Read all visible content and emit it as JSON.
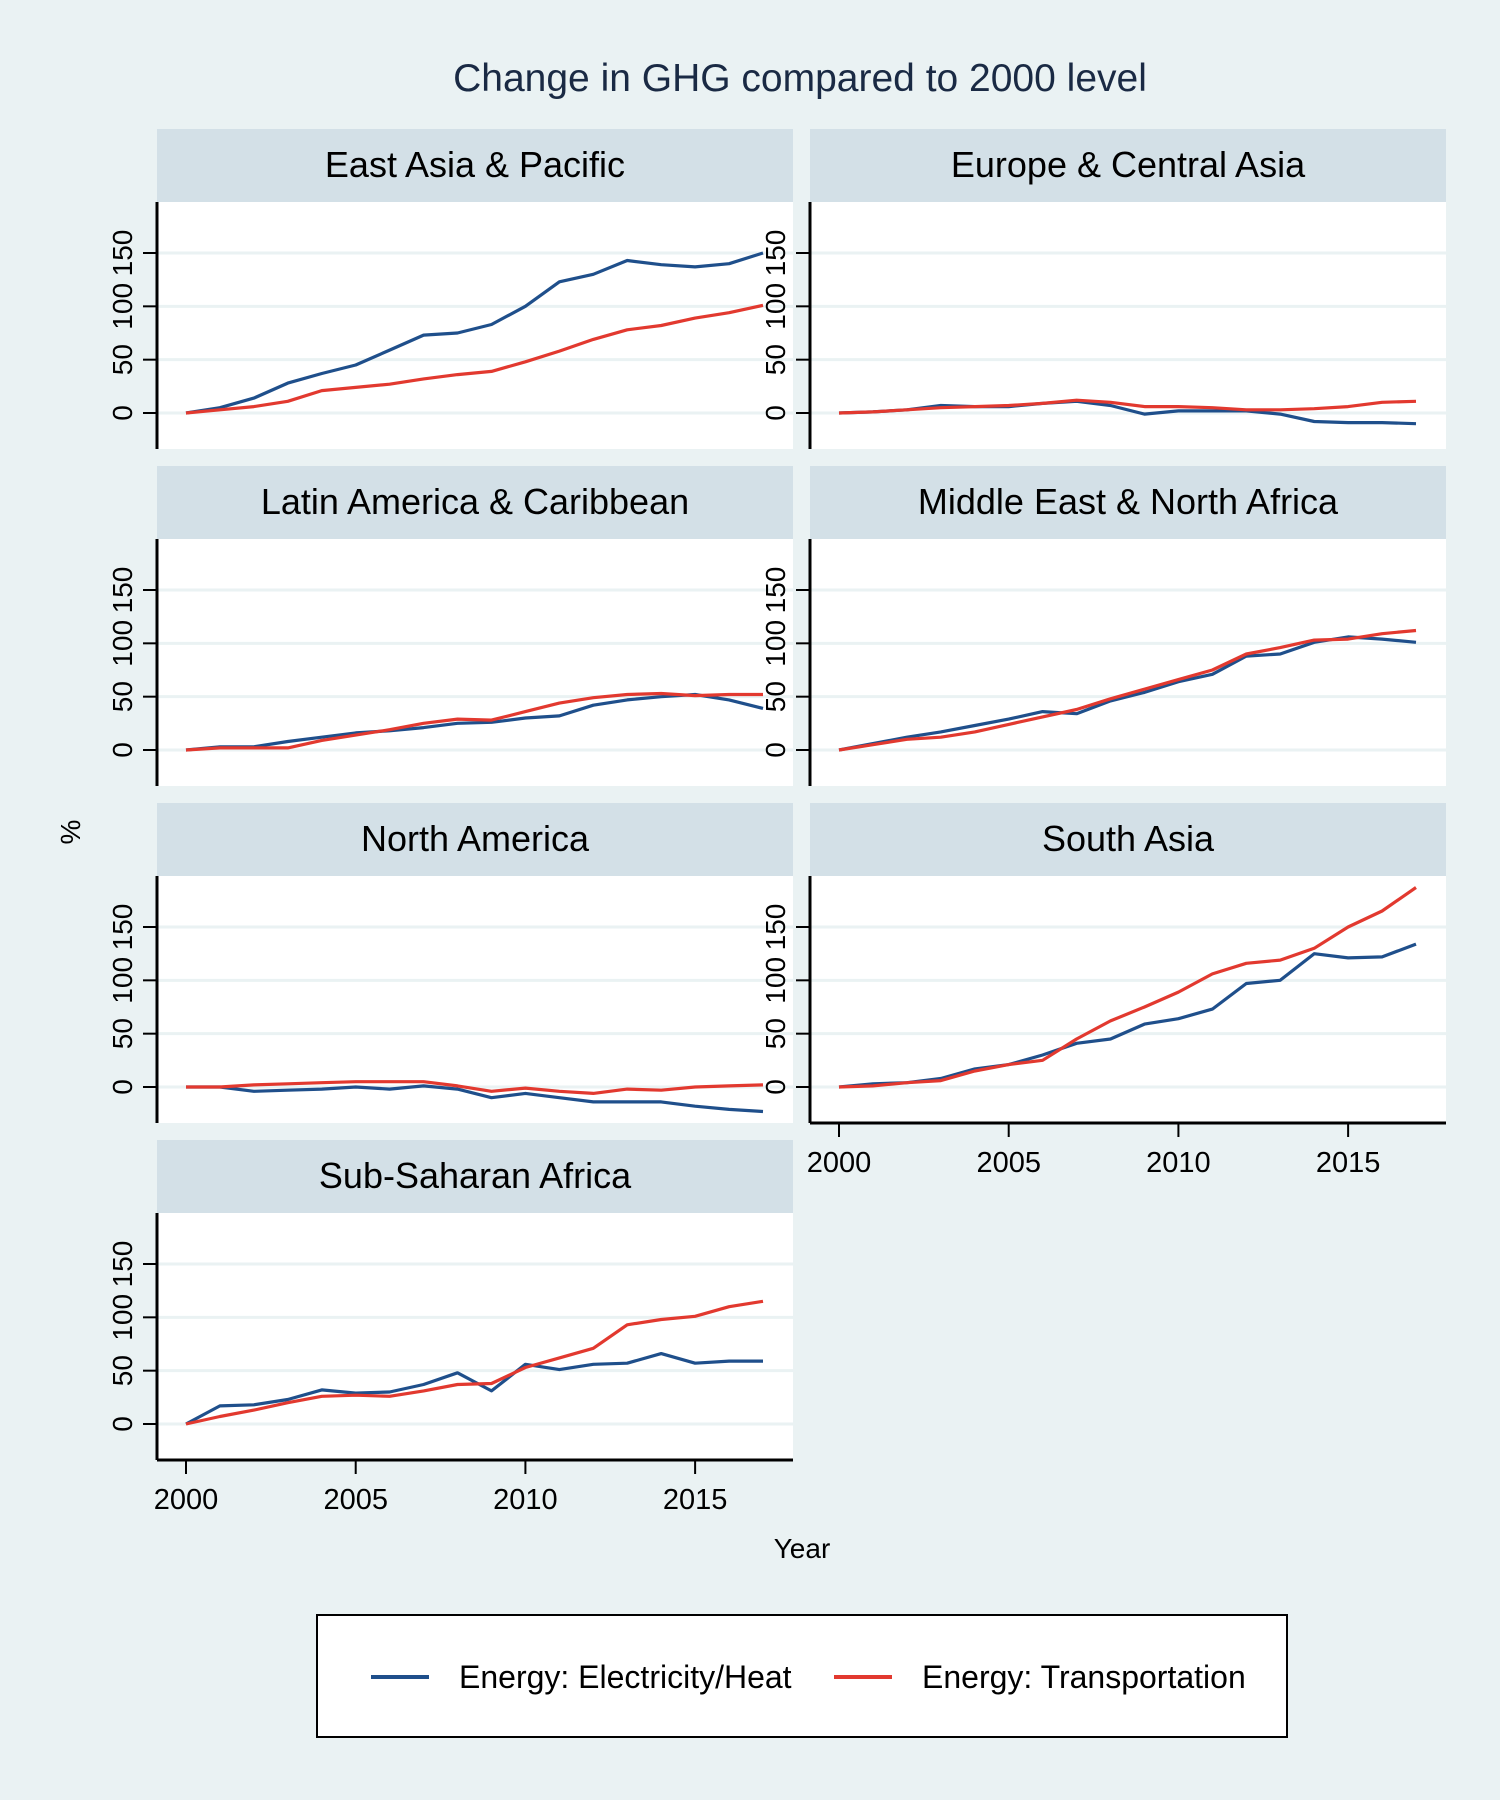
{
  "figure_title": "Change in GHG compared to 2000 level",
  "colors": {
    "background": "#eaf2f3",
    "plot_background": "#ffffff",
    "strip_background": "#d3e0e7",
    "grid": "#eaf2f3",
    "title": "#1a2a44",
    "electricity": "#1f4f8b",
    "transportation": "#e2392f"
  },
  "legend": {
    "items": [
      {
        "label": "Energy: Electricity/Heat",
        "color": "#1f4f8b"
      },
      {
        "label": "Energy: Transportation",
        "color": "#e2392f"
      }
    ]
  },
  "chart_data": {
    "type": "line",
    "title": "Change in GHG compared to 2000 level",
    "xlabel": "Year",
    "ylabel": "%",
    "x": [
      2000,
      2001,
      2002,
      2003,
      2004,
      2005,
      2006,
      2007,
      2008,
      2009,
      2010,
      2011,
      2012,
      2013,
      2014,
      2015,
      2016,
      2017
    ],
    "xlim": [
      2000,
      2017
    ],
    "xticks": [
      2000,
      2005,
      2010,
      2015
    ],
    "ylim": [
      -35,
      200
    ],
    "yticks": [
      0,
      50,
      100,
      150
    ],
    "grid": true,
    "legend_position": "bottom",
    "panels": [
      {
        "name": "East Asia & Pacific",
        "series": [
          {
            "name": "Energy: Electricity/Heat",
            "values": [
              0,
              5,
              14,
              28,
              37,
              45,
              59,
              73,
              75,
              83,
              100,
              123,
              130,
              143,
              139,
              137,
              140,
              150
            ]
          },
          {
            "name": "Energy: Transportation",
            "values": [
              0,
              3,
              6,
              11,
              21,
              24,
              27,
              32,
              36,
              39,
              48,
              58,
              69,
              78,
              82,
              89,
              94,
              101
            ]
          }
        ]
      },
      {
        "name": "Europe & Central Asia",
        "series": [
          {
            "name": "Energy: Electricity/Heat",
            "values": [
              0,
              1,
              3,
              7,
              6,
              6,
              9,
              11,
              7,
              -1,
              2,
              2,
              2,
              -1,
              -8,
              -9,
              -9,
              -10
            ]
          },
          {
            "name": "Energy: Transportation",
            "values": [
              0,
              1,
              3,
              5,
              6,
              7,
              9,
              12,
              10,
              6,
              6,
              5,
              3,
              3,
              4,
              6,
              10,
              11
            ]
          }
        ]
      },
      {
        "name": "Latin America & Caribbean",
        "series": [
          {
            "name": "Energy: Electricity/Heat",
            "values": [
              0,
              3,
              3,
              8,
              12,
              16,
              18,
              21,
              25,
              26,
              30,
              32,
              42,
              47,
              50,
              52,
              47,
              39
            ]
          },
          {
            "name": "Energy: Transportation",
            "values": [
              0,
              2,
              2,
              2,
              9,
              14,
              19,
              25,
              29,
              28,
              36,
              44,
              49,
              52,
              53,
              51,
              52,
              52
            ]
          }
        ]
      },
      {
        "name": "Middle East & North Africa",
        "series": [
          {
            "name": "Energy: Electricity/Heat",
            "values": [
              0,
              6,
              12,
              17,
              23,
              29,
              36,
              34,
              46,
              54,
              64,
              71,
              88,
              90,
              101,
              106,
              104,
              101
            ]
          },
          {
            "name": "Energy: Transportation",
            "values": [
              0,
              5,
              10,
              12,
              17,
              24,
              31,
              38,
              48,
              57,
              66,
              75,
              90,
              96,
              103,
              104,
              109,
              112
            ]
          }
        ]
      },
      {
        "name": "North America",
        "series": [
          {
            "name": "Energy: Electricity/Heat",
            "values": [
              0,
              0,
              -4,
              -3,
              -2,
              0,
              -2,
              1,
              -2,
              -10,
              -6,
              -10,
              -14,
              -14,
              -14,
              -18,
              -21,
              -23
            ]
          },
          {
            "name": "Energy: Transportation",
            "values": [
              0,
              0,
              2,
              3,
              4,
              5,
              5,
              5,
              1,
              -4,
              -1,
              -4,
              -6,
              -2,
              -3,
              0,
              1,
              2
            ]
          }
        ]
      },
      {
        "name": "South Asia",
        "series": [
          {
            "name": "Energy: Electricity/Heat",
            "values": [
              0,
              3,
              4,
              8,
              17,
              21,
              30,
              41,
              45,
              59,
              64,
              73,
              97,
              100,
              125,
              121,
              122,
              134
            ]
          },
          {
            "name": "Energy: Transportation",
            "values": [
              0,
              1,
              4,
              6,
              15,
              21,
              25,
              45,
              62,
              75,
              89,
              106,
              116,
              119,
              130,
              150,
              165,
              187
            ]
          }
        ]
      },
      {
        "name": "Sub-Saharan Africa",
        "series": [
          {
            "name": "Energy: Electricity/Heat",
            "values": [
              0,
              17,
              18,
              23,
              32,
              29,
              30,
              37,
              48,
              31,
              56,
              51,
              56,
              57,
              66,
              57,
              59,
              59
            ]
          },
          {
            "name": "Energy: Transportation",
            "values": [
              0,
              7,
              13,
              20,
              26,
              27,
              26,
              31,
              37,
              38,
              53,
              62,
              71,
              93,
              98,
              101,
              110,
              115
            ]
          }
        ]
      }
    ]
  }
}
